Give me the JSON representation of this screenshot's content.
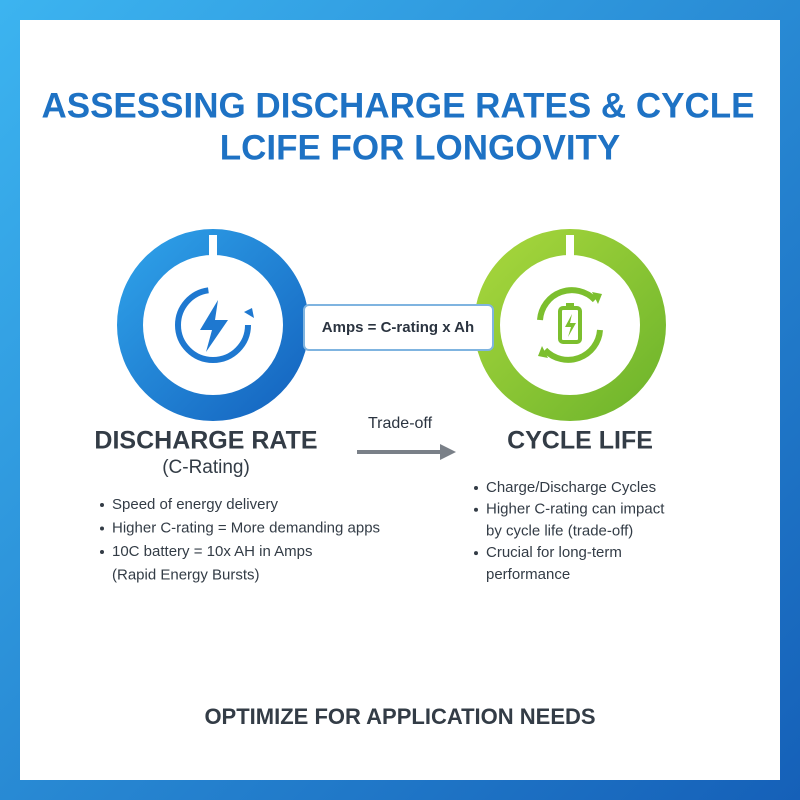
{
  "title": [
    "ASSESSING DISCHARGE RATES & CYCLE",
    "LCIFE FOR LONGOVITY"
  ],
  "formula": "Amps = C-rating x Ah",
  "arrow_label": "Trade-off",
  "left": {
    "heading": "DISCHARGE RATE",
    "subheading": "(C-Rating)",
    "bullets": [
      [
        "Speed of energy delivery"
      ],
      [
        "Higher C-rating = More demanding apps"
      ],
      [
        "10C battery = 10x AH in Amps",
        "(Rapid Energy Bursts)"
      ]
    ]
  },
  "right": {
    "heading": "CYCLE LIFE",
    "bullets": [
      [
        "Charge/Discharge Cycles"
      ],
      [
        "Higher C-rating can impact",
        "by cycle life (trade-off)"
      ],
      [
        "Crucial for long-term",
        "performance"
      ]
    ]
  },
  "footer": "OPTIMIZE FOR APPLICATION NEEDS"
}
